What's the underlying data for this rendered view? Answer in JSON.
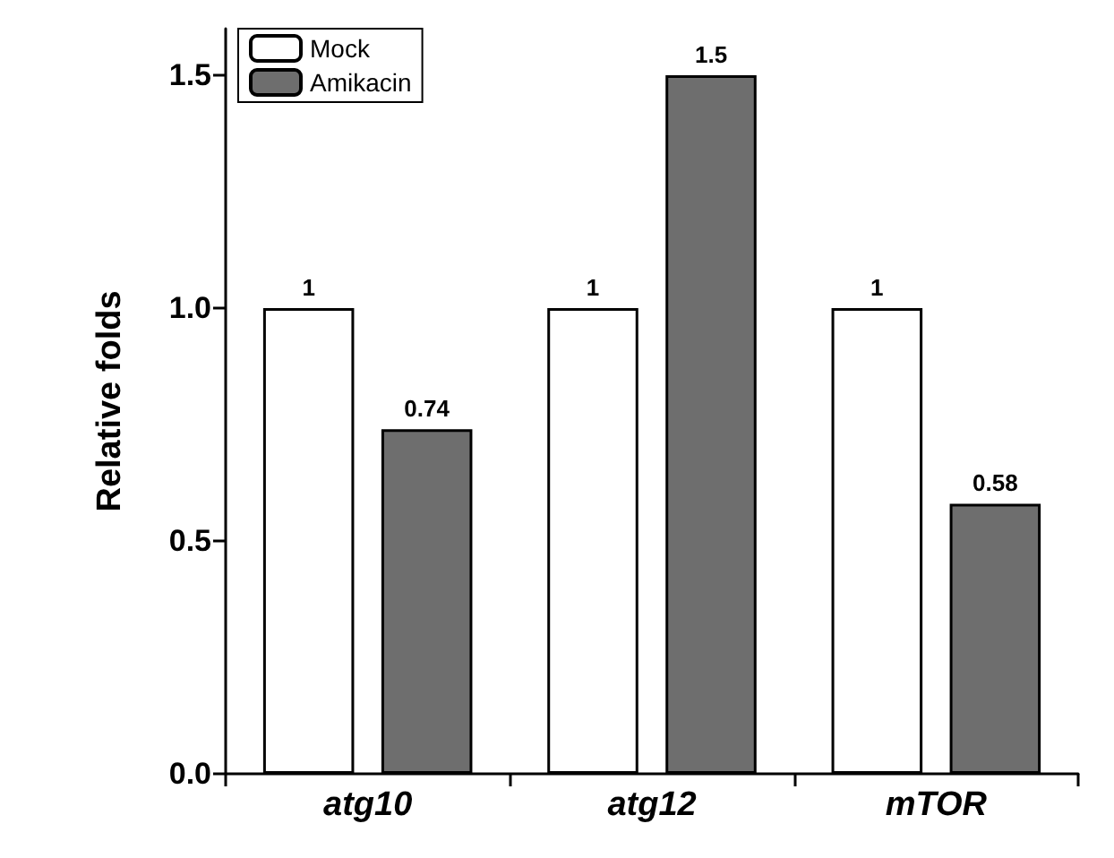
{
  "chart_data": {
    "type": "bar",
    "ylabel": "Relative folds",
    "categories": [
      "atg10",
      "atg12",
      "mTOR"
    ],
    "series": [
      {
        "name": "Mock",
        "color": "#ffffff",
        "values": [
          1,
          1,
          1
        ]
      },
      {
        "name": "Amikacin",
        "color": "#6e6e6e",
        "values": [
          0.74,
          1.5,
          0.58
        ]
      }
    ],
    "ylim": [
      0,
      1.6
    ],
    "yticks": [
      {
        "value": 0,
        "label": "0.0"
      },
      {
        "value": 0.5,
        "label": "0.5"
      },
      {
        "value": 1,
        "label": "1.0"
      },
      {
        "value": 1.5,
        "label": "1.5"
      }
    ],
    "data_labels": true,
    "grid": false,
    "legend": "top left"
  }
}
